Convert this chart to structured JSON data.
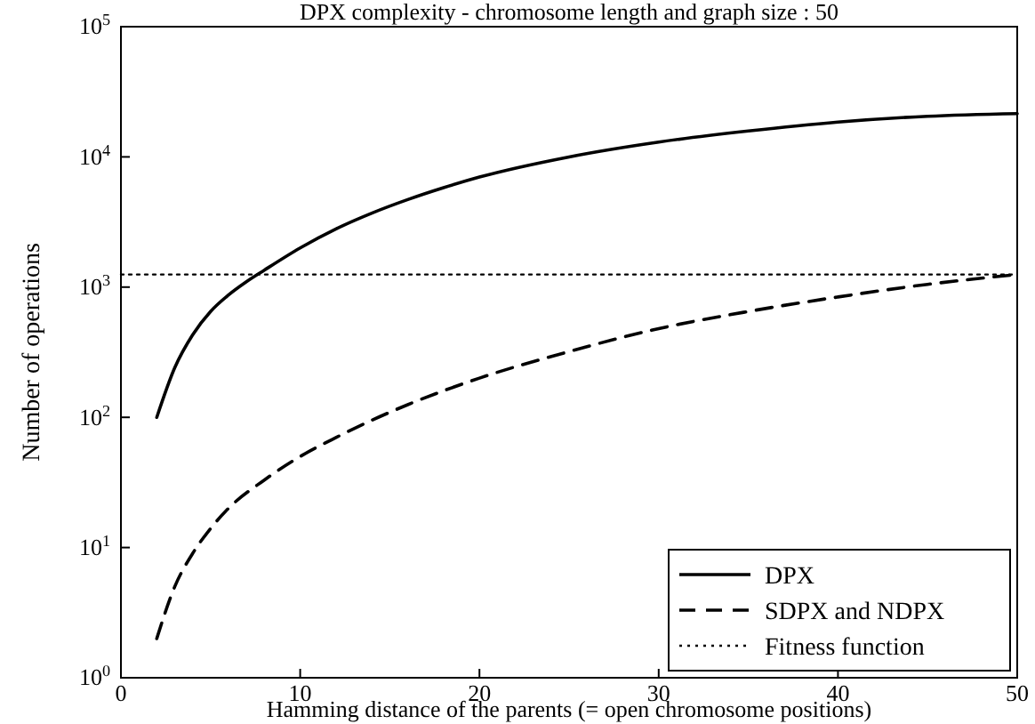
{
  "chart_data": {
    "type": "line",
    "title": "DPX complexity - chromosome length and graph size : 50",
    "xlabel": "Hamming distance of the parents (= open chromosome positions)",
    "ylabel": "Number of operations",
    "log": "y",
    "xlim": [
      0,
      50
    ],
    "xticks": [
      0,
      10,
      20,
      30,
      40,
      50
    ],
    "ylim": [
      1,
      100000
    ],
    "yticks": [
      {
        "value": 1,
        "label": "10$^{0}$"
      },
      {
        "value": 10,
        "label": "10$^{1}$"
      },
      {
        "value": 100,
        "label": "10$^{2}$"
      },
      {
        "value": 1000,
        "label": "10$^{3}$"
      },
      {
        "value": 10000,
        "label": "10$^{4}$"
      },
      {
        "value": 100000,
        "label": "10$^{5}$"
      }
    ],
    "grid": false,
    "legend": "bottom right",
    "marker": "none",
    "series": [
      {
        "name": "DPX",
        "color": "#000000",
        "line_style": "solid",
        "x": [
          2,
          3,
          4,
          5,
          6,
          7,
          8,
          10,
          12,
          14,
          16,
          18,
          20,
          25,
          30,
          35,
          40,
          45,
          50
        ],
        "values": [
          100,
          240,
          430,
          650,
          870,
          1100,
          1350,
          2000,
          2800,
          3700,
          4700,
          5800,
          7000,
          10000,
          13000,
          15800,
          18500,
          20500,
          21500
        ]
      },
      {
        "name": "SDPX and NDPX",
        "color": "#000000",
        "line_style": "dashed",
        "x": [
          2,
          3,
          4,
          5,
          6,
          8,
          10,
          12,
          14,
          16,
          18,
          20,
          25,
          30,
          35,
          40,
          45,
          50
        ],
        "values": [
          2,
          5,
          9,
          14,
          20,
          33,
          50,
          70,
          95,
          125,
          160,
          200,
          320,
          480,
          650,
          840,
          1050,
          1250
        ]
      },
      {
        "name": "Fitness function",
        "color": "#000000",
        "line_style": "dotted",
        "x": [
          0,
          50
        ],
        "values": [
          1250,
          1250
        ]
      }
    ]
  }
}
